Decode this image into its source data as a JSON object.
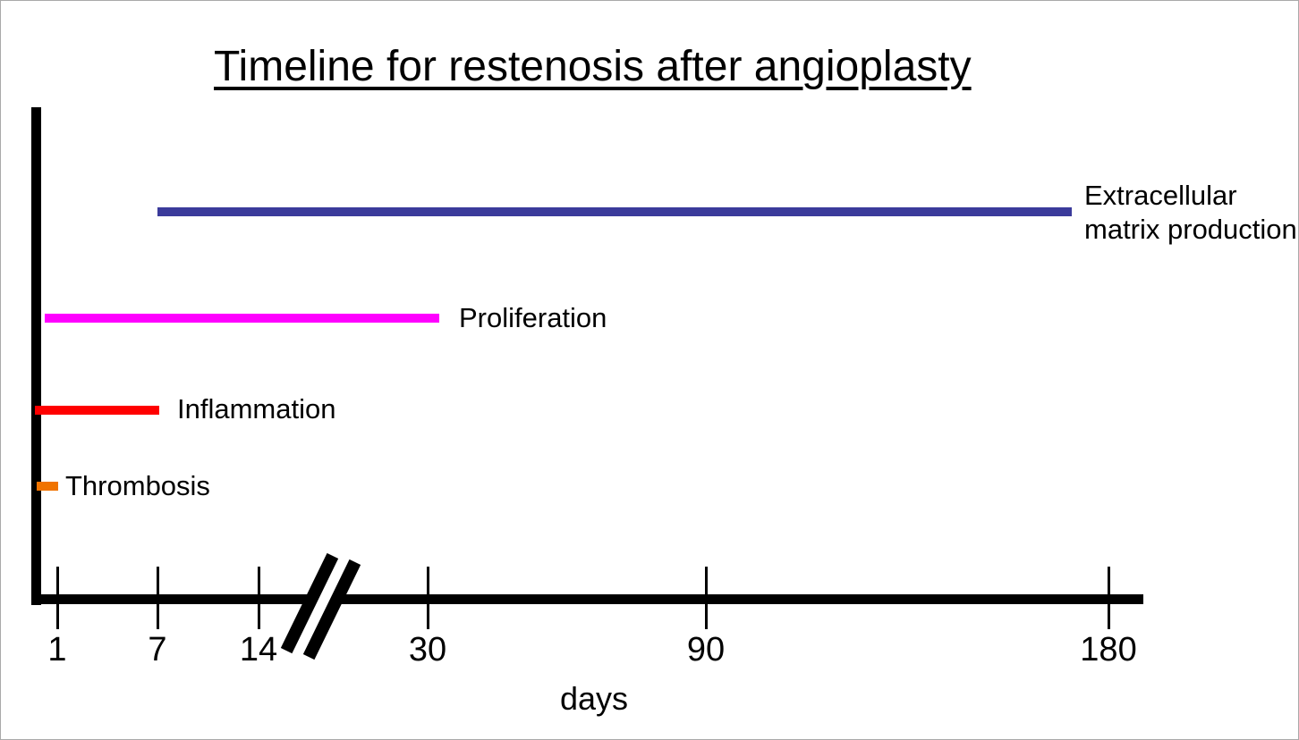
{
  "page": {
    "background_color": "#ffffff",
    "text_color": "#000000"
  },
  "chart_data": {
    "type": "bar",
    "variant": "horizontal-timeline",
    "title": "Timeline for restenosis after angioplasty",
    "xlabel": "days",
    "x_ticks": [
      "1",
      "7",
      "14",
      "30",
      "90",
      "180"
    ],
    "x_axis_range_days": [
      1,
      180
    ],
    "axis_break_between": [
      "14",
      "30"
    ],
    "axis_color": "#000000",
    "grid": false,
    "legend": "labels placed at end of each bar",
    "series": [
      {
        "name": "Extracellular matrix production",
        "start_day": 7,
        "end_day": 180,
        "color": "#3b3b9b"
      },
      {
        "name": "Proliferation",
        "start_day": 1,
        "end_day": 30,
        "color": "#ff00ff"
      },
      {
        "name": "Inflammation",
        "start_day": 1,
        "end_day": 7,
        "color": "#ff0000"
      },
      {
        "name": "Thrombosis",
        "start_day": 1,
        "end_day": 2,
        "color": "#f07300"
      }
    ]
  }
}
